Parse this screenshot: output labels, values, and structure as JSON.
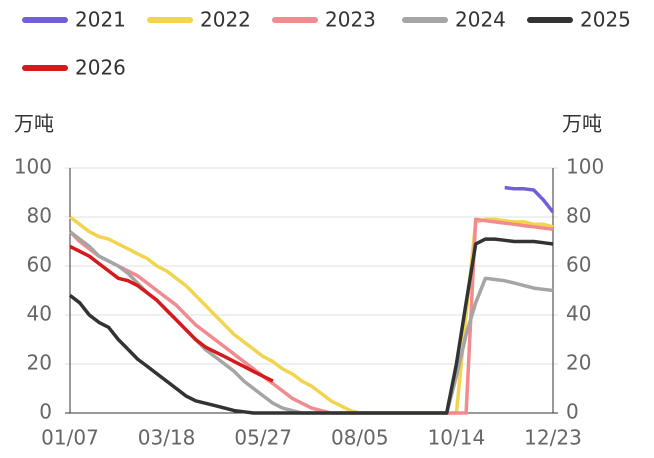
{
  "chart_data": {
    "type": "line",
    "y_label": "万吨",
    "y2_label": "万吨",
    "categories": [
      "01/07",
      null,
      null,
      null,
      null,
      null,
      null,
      null,
      null,
      null,
      "03/18",
      null,
      null,
      null,
      null,
      null,
      null,
      null,
      null,
      null,
      "05/27",
      null,
      null,
      null,
      null,
      null,
      null,
      null,
      null,
      null,
      "08/05",
      null,
      null,
      null,
      null,
      null,
      null,
      null,
      null,
      null,
      "10/14",
      null,
      null,
      null,
      null,
      null,
      null,
      null,
      null,
      null,
      "12/23"
    ],
    "ylim": [
      0,
      100
    ],
    "yticks": [
      0,
      20,
      40,
      60,
      80,
      100
    ],
    "y2lim": [
      0,
      100
    ],
    "y2ticks": [
      0,
      20,
      40,
      60,
      80,
      100
    ],
    "grid": true,
    "series": [
      {
        "name": "2021",
        "color": "#6f5fdc",
        "values": [
          null,
          null,
          null,
          null,
          null,
          null,
          null,
          null,
          null,
          null,
          null,
          null,
          null,
          null,
          null,
          null,
          null,
          null,
          null,
          null,
          null,
          null,
          null,
          null,
          null,
          null,
          null,
          null,
          null,
          null,
          null,
          null,
          null,
          null,
          null,
          null,
          null,
          null,
          null,
          null,
          null,
          null,
          null,
          null,
          null,
          92,
          91.5,
          91.5,
          91,
          87,
          82
        ]
      },
      {
        "name": "2022",
        "color": "#f2d44e",
        "values": [
          80,
          77,
          74,
          72,
          71,
          69,
          67,
          65,
          63,
          60,
          58,
          55,
          52,
          48,
          44,
          40,
          36,
          32,
          29,
          26,
          23,
          21,
          18,
          16,
          13,
          11,
          8,
          5,
          3,
          1,
          0,
          0,
          0,
          0,
          0,
          0,
          0,
          0,
          0,
          0,
          0,
          40,
          78,
          79,
          79,
          78.5,
          78,
          78,
          77,
          77,
          76
        ]
      },
      {
        "name": "2023",
        "color": "#f28b8e",
        "values": [
          74,
          70,
          67,
          64,
          62,
          60,
          58,
          56,
          53,
          50,
          47,
          44,
          40,
          36,
          33,
          30,
          27,
          24,
          21,
          18,
          15,
          12,
          9,
          6,
          4,
          2,
          1,
          0,
          0,
          0,
          0,
          0,
          0,
          0,
          0,
          0,
          0,
          0,
          0,
          0,
          0,
          0,
          79,
          78.5,
          78,
          77.5,
          77,
          76.5,
          76,
          75.5,
          75
        ]
      },
      {
        "name": "2024",
        "color": "#a5a5a5",
        "values": [
          74,
          71,
          68,
          64,
          62,
          60,
          57,
          53,
          49,
          46,
          42,
          38,
          34,
          30,
          26,
          23,
          20,
          17,
          13,
          10,
          7,
          4,
          2,
          1,
          0,
          0,
          0,
          0,
          0,
          0,
          0,
          0,
          0,
          0,
          0,
          0,
          0,
          0,
          0,
          0,
          15,
          32,
          45,
          55,
          54.5,
          54,
          53,
          52,
          51,
          50.5,
          50
        ]
      },
      {
        "name": "2025",
        "color": "#333333",
        "values": [
          48,
          45,
          40,
          37,
          35,
          30,
          26,
          22,
          19,
          16,
          13,
          10,
          7,
          5,
          4,
          3,
          2,
          1,
          0.5,
          0,
          0,
          0,
          0,
          0,
          0,
          0,
          0,
          0,
          0,
          0,
          0,
          0,
          0,
          0,
          0,
          0,
          0,
          0,
          0,
          0,
          20,
          45,
          69,
          71,
          71,
          70.5,
          70,
          70,
          70,
          69.5,
          69
        ]
      },
      {
        "name": "2026",
        "color": "#d7191c",
        "values": [
          68,
          66,
          64,
          61,
          58,
          55,
          54,
          52,
          49,
          46,
          42,
          38,
          34,
          30,
          27,
          25,
          23,
          21,
          19,
          17,
          15,
          13,
          null,
          null,
          null,
          null,
          null,
          null,
          null,
          null,
          null,
          null,
          null,
          null,
          null,
          null,
          null,
          null,
          null,
          null,
          null,
          null,
          null,
          null,
          null,
          null,
          null,
          null,
          null,
          null,
          null
        ]
      }
    ]
  }
}
